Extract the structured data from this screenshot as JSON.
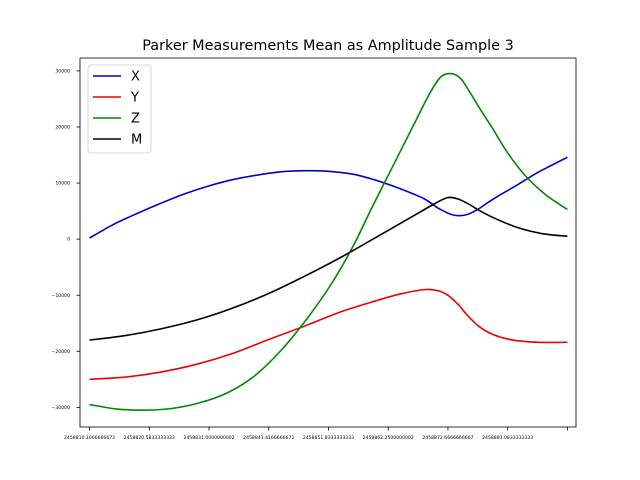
{
  "chart_data": {
    "type": "line",
    "title": "Parker Measurements Mean as Amplitude Sample 3",
    "xlabel": "",
    "ylabel": "",
    "xlim": [
      2458808.5,
      2458895.0
    ],
    "ylim": [
      -33500,
      32300
    ],
    "grid": false,
    "legend_position": "top-left",
    "x_ticks": [
      {
        "value": 2458810.166666667,
        "label": "2458810.1666666672"
      },
      {
        "value": 2458820.5833333335,
        "label": "2458820.5833333333"
      },
      {
        "value": 2458831.0,
        "label": "2458831.0000000002"
      },
      {
        "value": 2458841.416666667,
        "label": "2458841.4166666672"
      },
      {
        "value": 2458851.8333333335,
        "label": "2458851.8333333333"
      },
      {
        "value": 2458862.25,
        "label": "2458862.2500000002"
      },
      {
        "value": 2458872.6666666665,
        "label": "2458872.6666666667"
      },
      {
        "value": 2458883.0833333335,
        "label": "2458883.0833333333"
      },
      {
        "value": 2458893.5,
        "label": ""
      }
    ],
    "y_ticks": [
      {
        "value": -30000,
        "label": "−30000"
      },
      {
        "value": -20000,
        "label": "−20000"
      },
      {
        "value": -10000,
        "label": "−10000"
      },
      {
        "value": 0,
        "label": "0"
      },
      {
        "value": 10000,
        "label": "10000"
      },
      {
        "value": 20000,
        "label": "20000"
      },
      {
        "value": 30000,
        "label": "30000"
      }
    ],
    "series": [
      {
        "name": "X",
        "color": "#0000cc",
        "x": [
          2458810.17,
          2458814.3,
          2458818.5,
          2458822.6,
          2458826.8,
          2458831.0,
          2458835.1,
          2458839.3,
          2458843.5,
          2458847.7,
          2458851.8,
          2458856.0,
          2458860.1,
          2458864.3,
          2458868.5,
          2458871.0,
          2458873.6,
          2458875.7,
          2458877.7,
          2458879.6,
          2458881.6,
          2458884.5,
          2458888.0,
          2458890.8,
          2458893.5
        ],
        "y": [
          200,
          2600,
          4600,
          6400,
          8100,
          9500,
          10600,
          11400,
          12000,
          12200,
          12100,
          11600,
          10500,
          9000,
          7200,
          5500,
          4300,
          4300,
          5200,
          6500,
          7800,
          9500,
          11700,
          13200,
          14600
        ]
      },
      {
        "name": "Y",
        "color": "#ee0000",
        "x": [
          2458810.17,
          2458816.4,
          2458822.6,
          2458828.9,
          2458835.1,
          2458841.4,
          2458847.7,
          2458853.9,
          2458860.1,
          2458864.3,
          2458868.5,
          2458871.0,
          2458872.8,
          2458874.4,
          2458876.0,
          2458878.0,
          2458880.5,
          2458884.0,
          2458888.5,
          2458893.5
        ],
        "y": [
          -25000,
          -24600,
          -23700,
          -22300,
          -20400,
          -17900,
          -15500,
          -13000,
          -11000,
          -9800,
          -9000,
          -9200,
          -10100,
          -11600,
          -13500,
          -15500,
          -17000,
          -18000,
          -18400,
          -18400
        ]
      },
      {
        "name": "Z",
        "color": "#008800",
        "x": [
          2458810.17,
          2458815.0,
          2458819.8,
          2458824.5,
          2458829.3,
          2458834.0,
          2458838.8,
          2458843.5,
          2458848.0,
          2458852.2,
          2458856.0,
          2458859.5,
          2458863.3,
          2458867.0,
          2458869.5,
          2458871.5,
          2458873.4,
          2458875.0,
          2458876.6,
          2458878.4,
          2458880.6,
          2458883.0,
          2458886.0,
          2458889.6,
          2458893.5
        ],
        "y": [
          -29500,
          -30300,
          -30500,
          -30200,
          -29200,
          -27500,
          -24500,
          -19900,
          -14300,
          -8200,
          -1500,
          5800,
          13500,
          21000,
          26000,
          29000,
          29500,
          28500,
          26000,
          23000,
          19500,
          15500,
          11500,
          8000,
          5300
        ]
      },
      {
        "name": "M",
        "color": "#000000",
        "x": [
          2458810.17,
          2458816.4,
          2458822.6,
          2458828.9,
          2458835.1,
          2458841.4,
          2458847.7,
          2458853.9,
          2458860.1,
          2458866.4,
          2458870.5,
          2458872.6,
          2458874.3,
          2458876.2,
          2458878.5,
          2458881.5,
          2458885.0,
          2458889.0,
          2458893.5
        ],
        "y": [
          -18000,
          -17200,
          -16000,
          -14400,
          -12300,
          -9700,
          -6600,
          -3300,
          300,
          4000,
          6400,
          7400,
          7200,
          6300,
          4900,
          3400,
          2000,
          1000,
          500
        ]
      }
    ]
  }
}
